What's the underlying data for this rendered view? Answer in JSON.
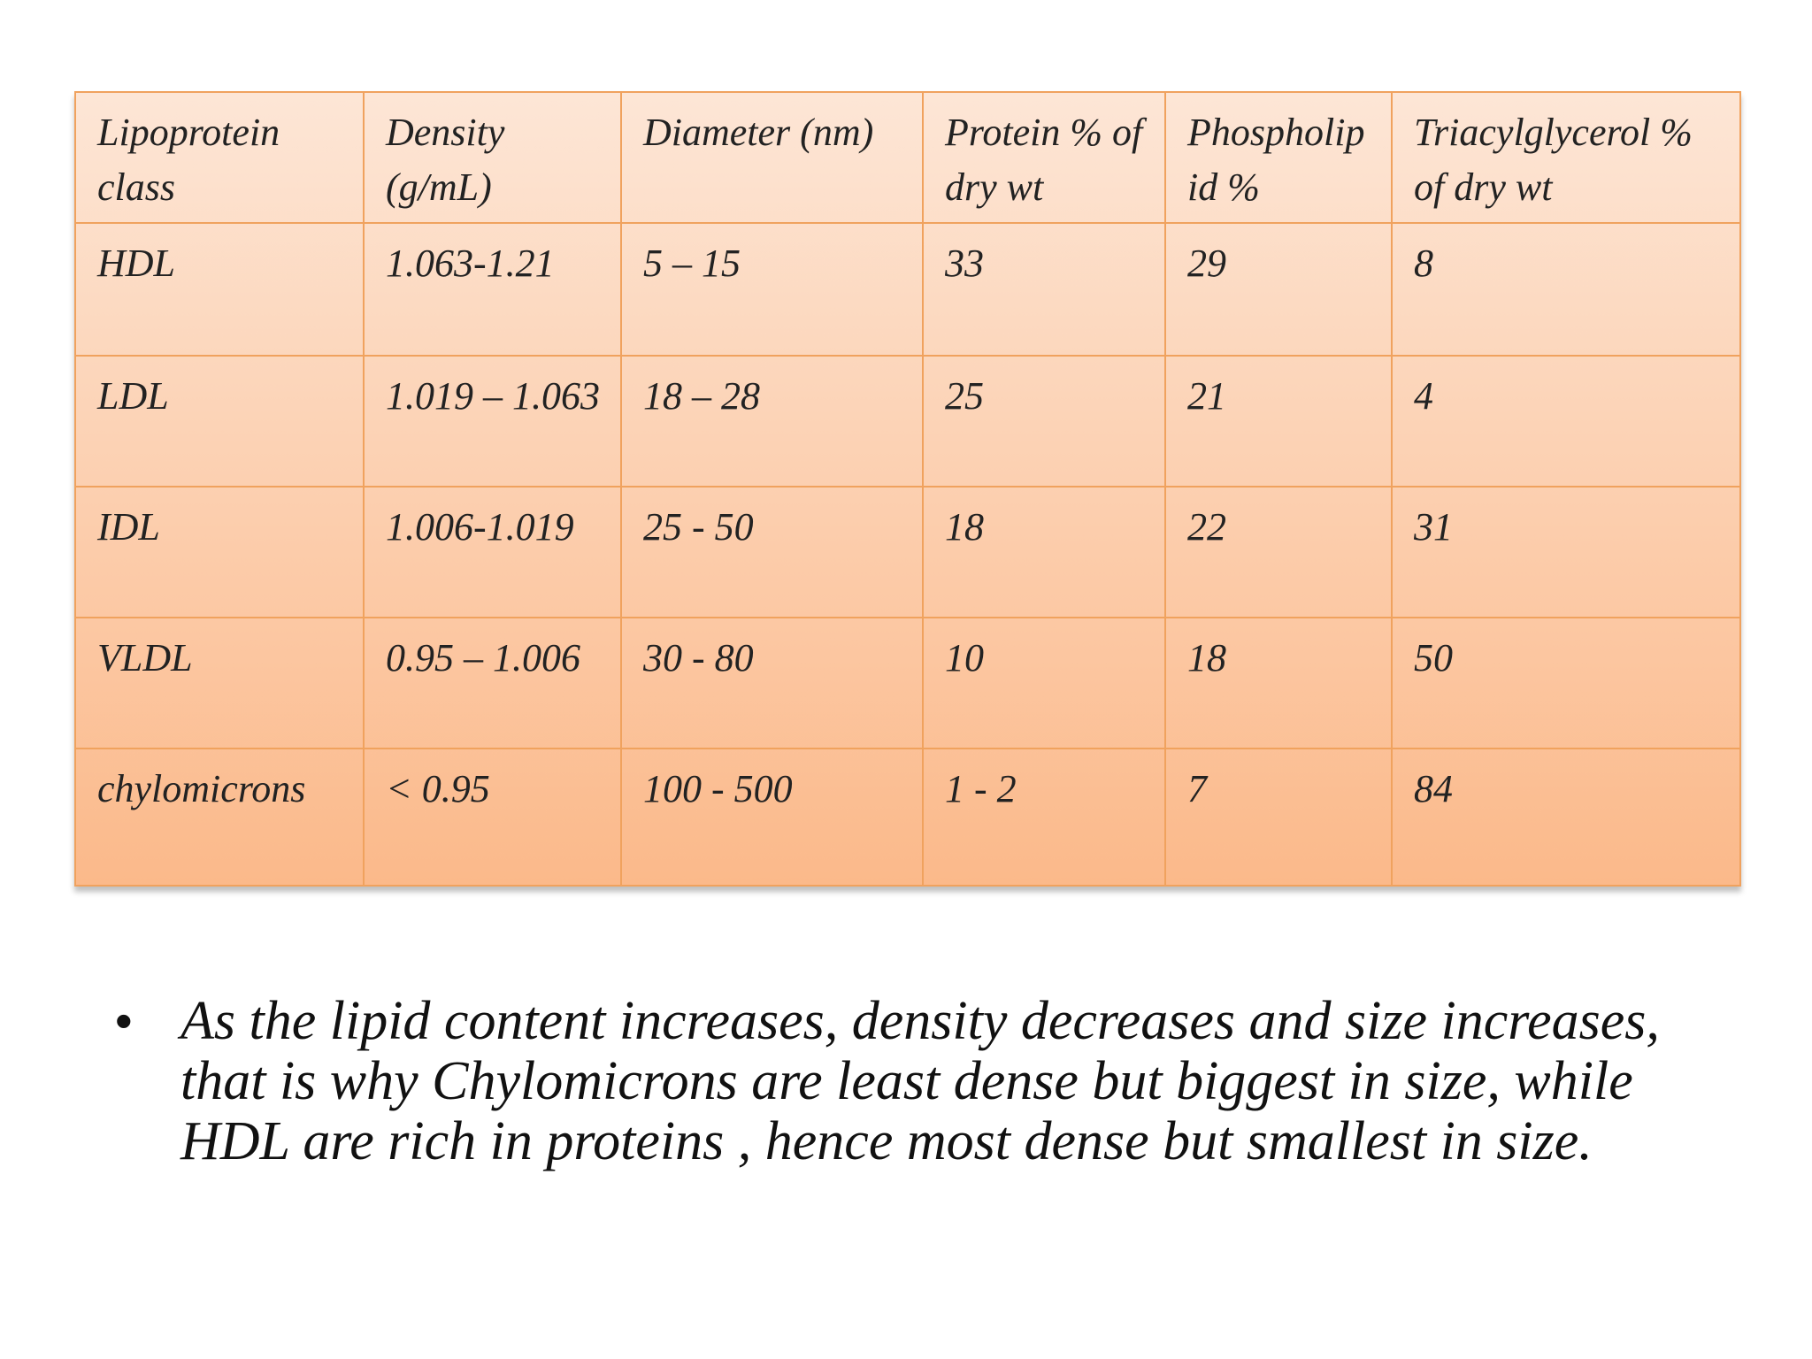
{
  "table": {
    "header": [
      "Lipoprotein class",
      "Density (g/mL)",
      "Diameter (nm)",
      "Protein % of dry wt",
      "Phospholipid %",
      "Triacylglycerol % of dry wt"
    ],
    "rows": [
      [
        "HDL",
        "1.063-1.21",
        "5 – 15",
        "33",
        "29",
        "8"
      ],
      [
        "LDL",
        "1.019 – 1.063",
        "18 – 28",
        "25",
        "21",
        "4"
      ],
      [
        "IDL",
        "1.006-1.019",
        "25 - 50",
        "18",
        "22",
        "31"
      ],
      [
        "VLDL",
        "0.95 – 1.006",
        "30 - 80",
        "10",
        "18",
        "50"
      ],
      [
        "chylomicrons",
        "< 0.95",
        "100 - 500",
        "1 - 2",
        "7",
        "84"
      ]
    ]
  },
  "bullets": [
    "As the lipid content increases, density decreases and size increases, that is why Chylomicrons are least dense but biggest in size, while HDL are rich in proteins , hence most dense but smallest in size."
  ]
}
